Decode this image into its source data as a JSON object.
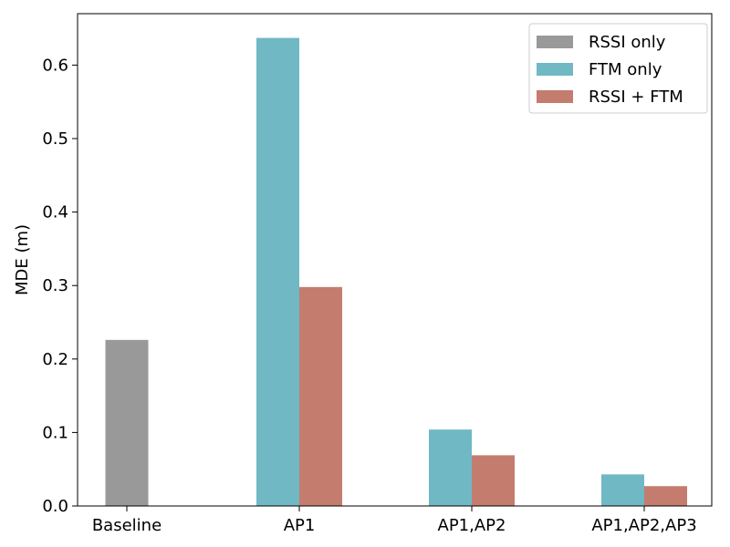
{
  "chart_data": {
    "type": "bar",
    "categories": [
      "Baseline",
      "AP1",
      "AP1,AP2",
      "AP1,AP2,AP3"
    ],
    "series": [
      {
        "name": "RSSI only",
        "color": "#999999",
        "values": [
          0.226,
          null,
          null,
          null
        ]
      },
      {
        "name": "FTM only",
        "color": "#70b8c4",
        "values": [
          null,
          0.637,
          0.104,
          0.043
        ]
      },
      {
        "name": "RSSI + FTM",
        "color": "#c47c6e",
        "values": [
          null,
          0.298,
          0.069,
          0.027
        ]
      }
    ],
    "ylabel": "MDE (m)",
    "xlabel": "",
    "ylim": [
      0,
      0.67
    ],
    "yticks": [
      "0.0",
      "0.1",
      "0.2",
      "0.3",
      "0.4",
      "0.5",
      "0.6"
    ],
    "grid": false,
    "legend_position": "top-right"
  }
}
